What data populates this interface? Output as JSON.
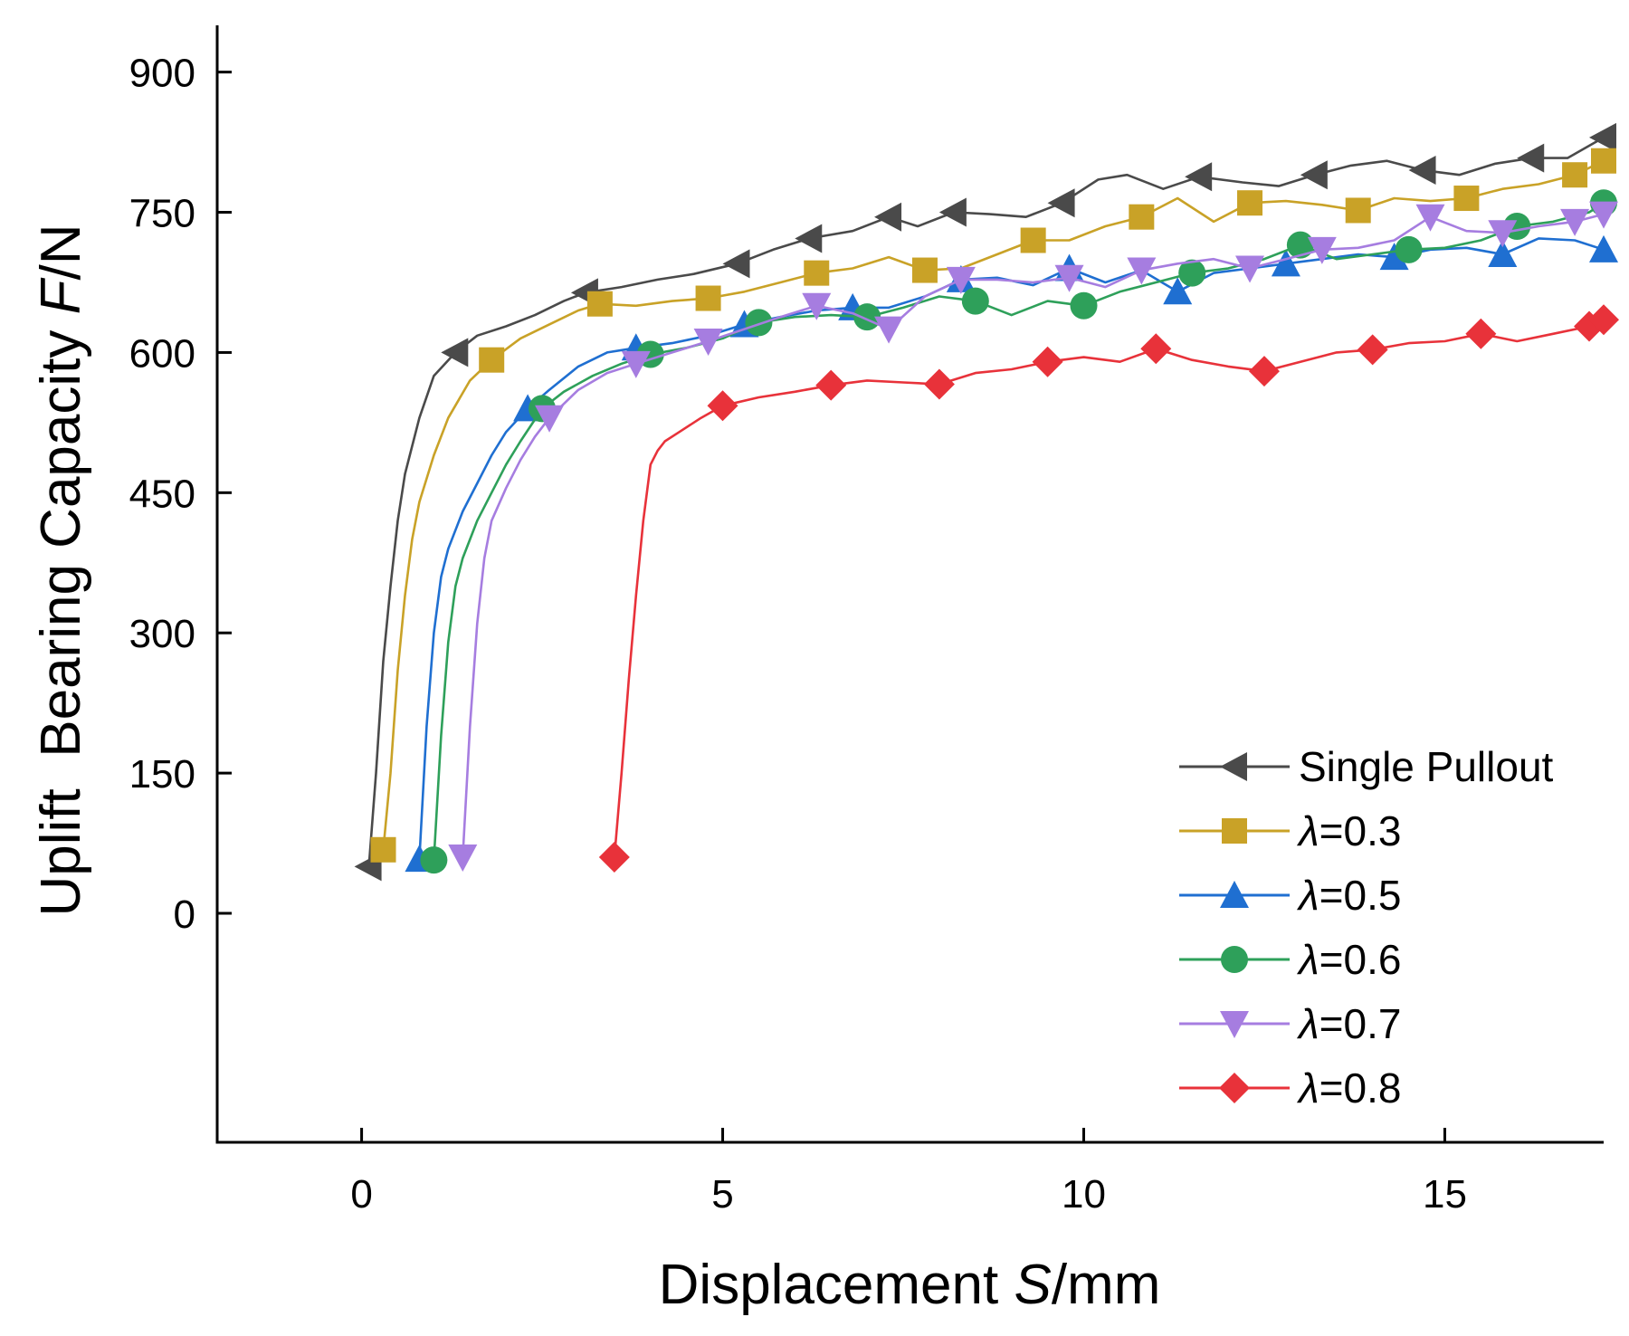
{
  "chart_data": {
    "type": "line",
    "xlabel": {
      "main": "Displacement ",
      "italic": "S",
      "suffix": "/mm"
    },
    "ylabel": {
      "main": "Uplift  Bearing Capacity ",
      "italic": "F",
      "suffix": "/N"
    },
    "xlim": [
      -2,
      17.2
    ],
    "ylim": [
      -245,
      950
    ],
    "xticks": [
      0,
      5,
      10,
      15
    ],
    "yticks": [
      0,
      150,
      300,
      450,
      600,
      750,
      900
    ],
    "grid": false,
    "legend_position": "bottom-right",
    "series": [
      {
        "name": "Single Pullout",
        "name_prefix": "",
        "name_value": "Single Pullout",
        "color": "#4a4a4a",
        "marker": "triangle-left",
        "x": [
          0.1,
          0.2,
          0.3,
          0.4,
          0.5,
          0.6,
          0.8,
          1.0,
          1.3,
          1.6,
          2.0,
          2.4,
          2.8,
          3.1,
          3.6,
          4.1,
          4.6,
          5.2,
          5.7,
          6.2,
          6.8,
          7.3,
          7.7,
          8.2,
          8.7,
          9.2,
          9.7,
          10.2,
          10.6,
          11.1,
          11.6,
          12.2,
          12.7,
          13.2,
          13.7,
          14.2,
          14.7,
          15.2,
          15.7,
          16.2,
          16.7,
          17.2
        ],
        "y": [
          50,
          150,
          270,
          350,
          420,
          470,
          530,
          575,
          600,
          618,
          628,
          640,
          655,
          664,
          670,
          678,
          684,
          695,
          710,
          722,
          730,
          745,
          735,
          750,
          748,
          745,
          760,
          785,
          790,
          775,
          788,
          782,
          778,
          790,
          800,
          805,
          795,
          790,
          802,
          808,
          808,
          830
        ],
        "marker_indices": [
          0,
          8,
          13,
          17,
          19,
          21,
          23,
          26,
          30,
          33,
          36,
          39,
          41
        ]
      },
      {
        "name": "λ=0.3",
        "name_prefix": "λ",
        "name_value": "=0.3",
        "color": "#c9a227",
        "marker": "square",
        "x": [
          0.3,
          0.4,
          0.5,
          0.6,
          0.7,
          0.8,
          1.0,
          1.2,
          1.5,
          1.8,
          2.2,
          2.6,
          3.0,
          3.3,
          3.8,
          4.3,
          4.8,
          5.3,
          5.8,
          6.3,
          6.8,
          7.3,
          7.8,
          8.3,
          8.8,
          9.3,
          9.8,
          10.3,
          10.8,
          11.3,
          11.8,
          12.3,
          12.8,
          13.3,
          13.8,
          14.3,
          14.8,
          15.3,
          15.8,
          16.3,
          16.8,
          17.2
        ],
        "y": [
          68,
          150,
          260,
          340,
          400,
          440,
          490,
          530,
          570,
          592,
          615,
          630,
          645,
          652,
          650,
          655,
          658,
          665,
          675,
          685,
          690,
          702,
          688,
          690,
          705,
          720,
          720,
          735,
          745,
          765,
          740,
          760,
          762,
          758,
          752,
          765,
          762,
          765,
          775,
          780,
          790,
          805
        ],
        "marker_indices": [
          0,
          9,
          13,
          16,
          19,
          22,
          25,
          28,
          31,
          34,
          37,
          40,
          41
        ]
      },
      {
        "name": "λ=0.5",
        "name_prefix": "λ",
        "name_value": "=0.5",
        "color": "#1f6fd1",
        "marker": "triangle-up",
        "x": [
          0.8,
          0.9,
          1.0,
          1.1,
          1.2,
          1.4,
          1.6,
          1.8,
          2.0,
          2.3,
          2.6,
          3.0,
          3.4,
          3.8,
          4.3,
          4.8,
          5.3,
          5.8,
          6.3,
          6.8,
          7.3,
          7.8,
          8.3,
          8.8,
          9.3,
          9.8,
          10.3,
          10.8,
          11.3,
          11.8,
          12.3,
          12.8,
          13.3,
          13.8,
          14.3,
          14.8,
          15.3,
          15.8,
          16.3,
          16.8,
          17.2
        ],
        "y": [
          58,
          200,
          300,
          360,
          390,
          430,
          460,
          490,
          515,
          540,
          560,
          585,
          600,
          605,
          610,
          618,
          630,
          638,
          645,
          648,
          648,
          660,
          678,
          680,
          672,
          690,
          675,
          688,
          665,
          685,
          690,
          695,
          700,
          705,
          702,
          710,
          712,
          705,
          722,
          720,
          710
        ],
        "marker_indices": [
          0,
          9,
          13,
          16,
          19,
          22,
          25,
          28,
          31,
          34,
          37,
          40
        ]
      },
      {
        "name": "λ=0.6",
        "name_prefix": "λ",
        "name_value": "=0.6",
        "color": "#2ea05a",
        "marker": "circle",
        "x": [
          1.0,
          1.1,
          1.2,
          1.3,
          1.4,
          1.6,
          1.8,
          2.0,
          2.2,
          2.5,
          2.8,
          3.2,
          3.6,
          4.0,
          4.5,
          5.0,
          5.5,
          6.0,
          6.5,
          7.0,
          7.5,
          8.0,
          8.5,
          9.0,
          9.5,
          10.0,
          10.5,
          11.0,
          11.5,
          12.0,
          12.5,
          13.0,
          13.5,
          14.0,
          14.5,
          15.0,
          15.5,
          16.0,
          16.5,
          17.0,
          17.2
        ],
        "y": [
          57,
          190,
          290,
          350,
          380,
          420,
          450,
          480,
          505,
          540,
          558,
          575,
          588,
          598,
          605,
          615,
          632,
          638,
          640,
          638,
          648,
          660,
          655,
          640,
          655,
          650,
          665,
          675,
          685,
          690,
          700,
          715,
          700,
          705,
          710,
          712,
          720,
          735,
          740,
          750,
          760
        ],
        "marker_indices": [
          0,
          9,
          13,
          16,
          19,
          22,
          25,
          28,
          31,
          34,
          37,
          40
        ]
      },
      {
        "name": "λ=0.7",
        "name_prefix": "λ",
        "name_value": "=0.7",
        "color": "#a67de0",
        "marker": "triangle-down",
        "x": [
          1.4,
          1.5,
          1.6,
          1.7,
          1.8,
          2.0,
          2.2,
          2.4,
          2.6,
          3.0,
          3.4,
          3.8,
          4.3,
          4.8,
          5.3,
          5.8,
          6.3,
          6.8,
          7.3,
          7.8,
          8.3,
          8.8,
          9.3,
          9.8,
          10.3,
          10.8,
          11.3,
          11.8,
          12.3,
          12.8,
          13.3,
          13.8,
          14.3,
          14.8,
          15.3,
          15.8,
          16.3,
          16.8,
          17.2
        ],
        "y": [
          60,
          200,
          310,
          380,
          420,
          455,
          485,
          510,
          530,
          560,
          578,
          588,
          600,
          612,
          625,
          638,
          650,
          642,
          625,
          660,
          678,
          678,
          675,
          680,
          670,
          688,
          695,
          700,
          690,
          700,
          710,
          712,
          720,
          745,
          730,
          728,
          735,
          740,
          748
        ],
        "marker_indices": [
          0,
          8,
          11,
          13,
          16,
          18,
          20,
          23,
          25,
          28,
          30,
          33,
          35,
          37,
          38
        ]
      },
      {
        "name": "λ=0.8",
        "name_prefix": "λ",
        "name_value": "=0.8",
        "color": "#e8323a",
        "marker": "diamond",
        "x": [
          3.5,
          3.6,
          3.7,
          3.8,
          3.9,
          4.0,
          4.1,
          4.2,
          4.4,
          4.7,
          5.0,
          5.5,
          6.0,
          6.5,
          7.0,
          7.5,
          8.0,
          8.5,
          9.0,
          9.5,
          10.0,
          10.5,
          11.0,
          11.5,
          12.0,
          12.5,
          13.0,
          13.5,
          14.0,
          14.5,
          15.0,
          15.5,
          16.0,
          16.5,
          17.0,
          17.2
        ],
        "y": [
          60,
          150,
          250,
          340,
          420,
          480,
          495,
          505,
          515,
          530,
          543,
          552,
          558,
          565,
          570,
          568,
          566,
          578,
          582,
          590,
          595,
          590,
          604,
          592,
          585,
          580,
          590,
          600,
          603,
          610,
          612,
          620,
          612,
          620,
          628,
          635
        ],
        "marker_indices": [
          0,
          10,
          13,
          16,
          19,
          22,
          25,
          28,
          31,
          34,
          35
        ]
      }
    ]
  }
}
